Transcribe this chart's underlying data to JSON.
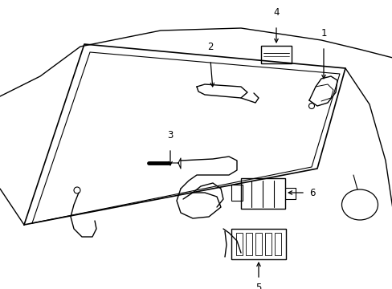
{
  "background_color": "#ffffff",
  "line_color": "#000000",
  "lw": 1.0,
  "label_fontsize": 8.5,
  "fig_w": 4.89,
  "fig_h": 3.6
}
